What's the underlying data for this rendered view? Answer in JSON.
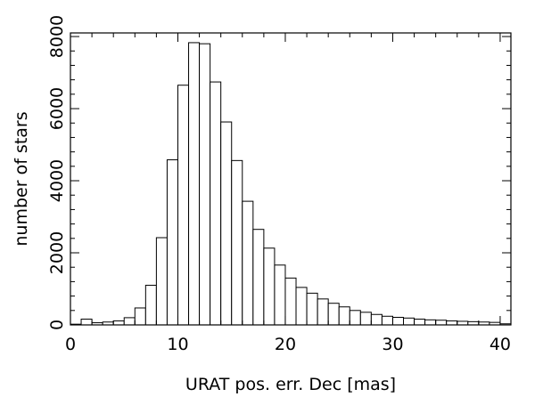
{
  "chart_data": {
    "type": "bar",
    "title": "",
    "xlabel": "URAT pos. err. Dec [mas]",
    "ylabel": "number of stars",
    "xlim": [
      0,
      41
    ],
    "ylim": [
      0,
      8100
    ],
    "x_ticks": [
      0,
      10,
      20,
      30,
      40
    ],
    "y_ticks": [
      0,
      2000,
      4000,
      6000,
      8000
    ],
    "bin_width": 1,
    "bin_starts": [
      0,
      1,
      2,
      3,
      4,
      5,
      6,
      7,
      8,
      9,
      10,
      11,
      12,
      13,
      14,
      15,
      16,
      17,
      18,
      19,
      20,
      21,
      22,
      23,
      24,
      25,
      26,
      27,
      28,
      29,
      30,
      31,
      32,
      33,
      34,
      35,
      36,
      37,
      38,
      39,
      40
    ],
    "values": [
      20,
      160,
      60,
      80,
      110,
      200,
      470,
      1100,
      2420,
      4580,
      6650,
      7830,
      7800,
      6740,
      5630,
      4560,
      3430,
      2650,
      2130,
      1660,
      1300,
      1040,
      880,
      720,
      600,
      500,
      400,
      350,
      290,
      240,
      210,
      190,
      160,
      140,
      130,
      110,
      100,
      90,
      80,
      70,
      30
    ],
    "grid": false,
    "legend": "none"
  }
}
